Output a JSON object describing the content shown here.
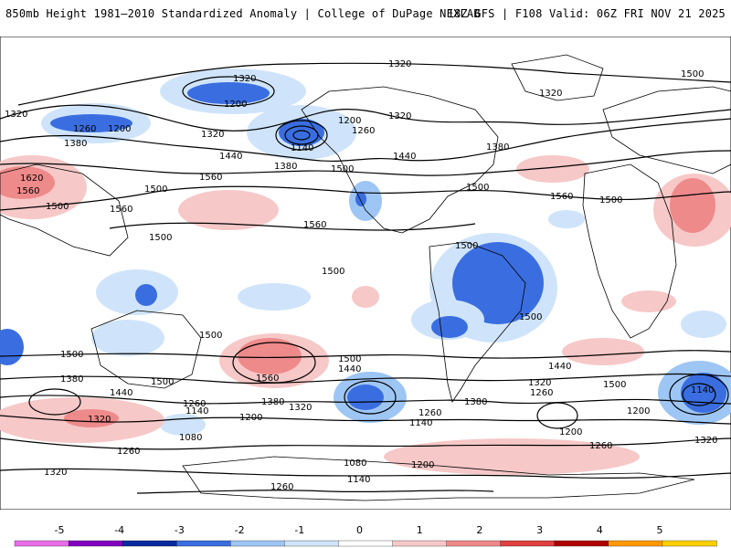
{
  "header": {
    "title_left": "850mb Height 1981–2010 Standardized Anomaly | College of DuPage NEXLAB",
    "title_right": "18Z GFS | F108 Valid: 06Z FRI NOV 21 2025"
  },
  "contour_labels": [
    "1320",
    "1260",
    "1200",
    "1320",
    "1320",
    "1320",
    "1260",
    "1200",
    "1380",
    "1320",
    "1200",
    "1260",
    "1140",
    "1440",
    "1380",
    "1500",
    "1320",
    "1380",
    "1440",
    "1620",
    "1560",
    "1500",
    "1560",
    "1500",
    "1560",
    "1560",
    "1500",
    "1500",
    "1500",
    "1500",
    "1500",
    "1500",
    "1500",
    "1500",
    "1500",
    "1560",
    "1500",
    "1380",
    "1440",
    "1500",
    "1560",
    "1380",
    "1320",
    "1440",
    "1500",
    "1320",
    "1260",
    "1440",
    "1260",
    "1140",
    "1080",
    "1140",
    "1200",
    "1380",
    "1320",
    "1260",
    "1140",
    "1200",
    "1320",
    "1260",
    "1200",
    "1140",
    "1140",
    "1200",
    "1080",
    "1260",
    "1320",
    "1260",
    "1200",
    "1140",
    "1080",
    "1200",
    "1260",
    "1320",
    "1260",
    "1140",
    "1260",
    "1080"
  ],
  "colorbar": {
    "ticks": [
      "-5",
      "-4",
      "-3",
      "-2",
      "-1",
      "0",
      "1",
      "2",
      "3",
      "4",
      "5"
    ],
    "colors": [
      "#e86ee8",
      "#8000c0",
      "#0a2aa0",
      "#3a6ee0",
      "#9ec6f4",
      "#cfe4fa",
      "#ffffff",
      "#f7c8c8",
      "#ef8a8a",
      "#e04040",
      "#b00000",
      "#ff9900",
      "#ffd000"
    ]
  }
}
